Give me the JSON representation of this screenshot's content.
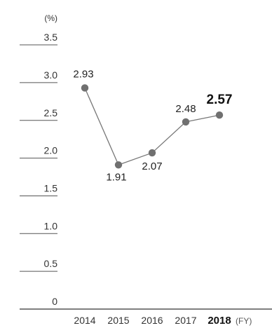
{
  "chart_data": {
    "type": "line",
    "categories": [
      "2014",
      "2015",
      "2016",
      "2017",
      "2018"
    ],
    "values": [
      2.93,
      1.91,
      2.07,
      2.48,
      2.57
    ],
    "data_labels": [
      "2.93",
      "1.91",
      "2.07",
      "2.48",
      "2.57"
    ],
    "highlight_index": 4,
    "y_unit_label": "(%)",
    "x_unit_label": "(FY)",
    "yticks": [
      "0",
      "0.5",
      "1.0",
      "1.5",
      "2.0",
      "2.5",
      "3.0",
      "3.5"
    ],
    "ytick_values": [
      0,
      0.5,
      1.0,
      1.5,
      2.0,
      2.5,
      3.0,
      3.5
    ],
    "ylim": [
      0,
      3.5
    ],
    "grid": false,
    "colors": {
      "line": "#777777",
      "marker": "#707070",
      "axis": "#333333",
      "tick_rule": "#555555"
    }
  }
}
